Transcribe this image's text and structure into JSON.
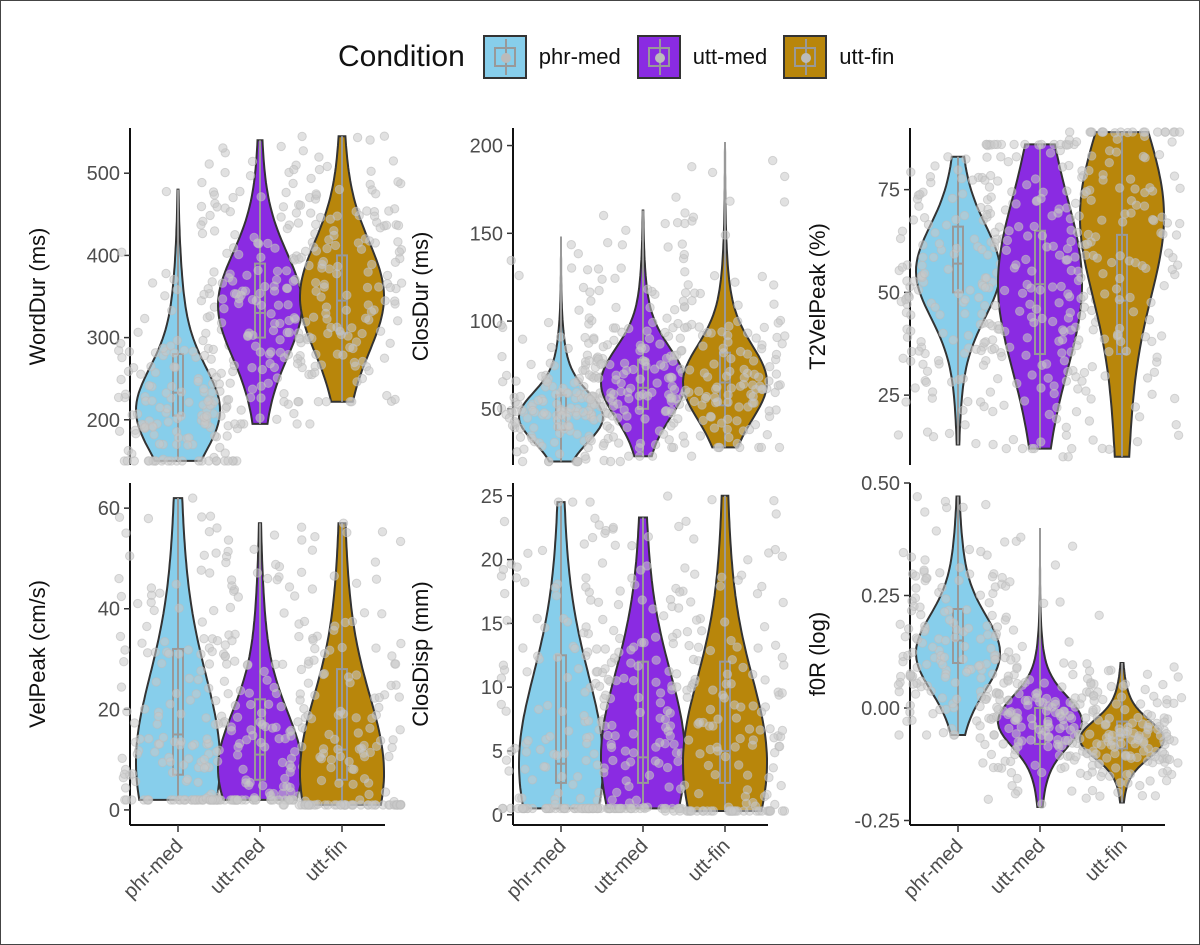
{
  "legend": {
    "title": "Condition",
    "items": [
      {
        "label": "phr-med",
        "color": "#87CEEB"
      },
      {
        "label": "utt-med",
        "color": "#8A2BE2"
      },
      {
        "label": "utt-fin",
        "color": "#B8860B"
      }
    ]
  },
  "colors": {
    "phr-med": "#87CEEB",
    "utt-med": "#8A2BE2",
    "utt-fin": "#B8860B",
    "points": "#C8C8C8",
    "outline": "#333333"
  },
  "chart_data": [
    {
      "type": "violin",
      "ylabel": "WordDur (ms)",
      "categories": [
        "phr-med",
        "utt-med",
        "utt-fin"
      ],
      "yticks": [
        200,
        300,
        400,
        500
      ],
      "ylim": [
        145,
        555
      ],
      "series": [
        {
          "category": "phr-med",
          "min": 150,
          "max": 480,
          "median": 233,
          "q1": 205,
          "q3": 280,
          "mode": 210
        },
        {
          "category": "utt-med",
          "min": 195,
          "max": 540,
          "median": 330,
          "q1": 300,
          "q3": 390,
          "mode": 340
        },
        {
          "category": "utt-fin",
          "min": 222,
          "max": 545,
          "median": 345,
          "q1": 305,
          "q3": 400,
          "mode": 350
        }
      ]
    },
    {
      "type": "violin",
      "ylabel": "ClosDur (ms)",
      "categories": [
        "phr-med",
        "utt-med",
        "utt-fin"
      ],
      "yticks": [
        50,
        100,
        150,
        200
      ],
      "ylim": [
        18,
        210
      ],
      "series": [
        {
          "category": "phr-med",
          "min": 20,
          "max": 148,
          "median": 48,
          "q1": 38,
          "q3": 58,
          "mode": 45
        },
        {
          "category": "utt-med",
          "min": 23,
          "max": 163,
          "median": 62,
          "q1": 50,
          "q3": 78,
          "mode": 65
        },
        {
          "category": "utt-fin",
          "min": 28,
          "max": 202,
          "median": 65,
          "q1": 52,
          "q3": 82,
          "mode": 65
        }
      ]
    },
    {
      "type": "violin",
      "ylabel": "T2VelPeak (%)",
      "categories": [
        "phr-med",
        "utt-med",
        "utt-fin"
      ],
      "yticks": [
        25,
        50,
        75
      ],
      "ylim": [
        8,
        90
      ],
      "series": [
        {
          "category": "phr-med",
          "min": 13,
          "max": 83,
          "median": 57,
          "q1": 50,
          "q3": 66,
          "mode": 55
        },
        {
          "category": "utt-med",
          "min": 12,
          "max": 86,
          "median": 52,
          "q1": 35,
          "q3": 65,
          "mode": 52
        },
        {
          "category": "utt-fin",
          "min": 10,
          "max": 89,
          "median": 48,
          "q1": 35,
          "q3": 64,
          "mode": 70
        }
      ]
    },
    {
      "type": "violin",
      "ylabel": "VelPeak (cm/s)",
      "categories": [
        "phr-med",
        "utt-med",
        "utt-fin"
      ],
      "yticks": [
        0,
        20,
        40,
        60
      ],
      "ylim": [
        -3,
        65
      ],
      "series": [
        {
          "category": "phr-med",
          "min": 2,
          "max": 62,
          "median": 15,
          "q1": 7,
          "q3": 32,
          "mode": 9
        },
        {
          "category": "utt-med",
          "min": 2,
          "max": 57,
          "median": 11,
          "q1": 6,
          "q3": 22,
          "mode": 8
        },
        {
          "category": "utt-fin",
          "min": 1,
          "max": 57,
          "median": 12,
          "q1": 6,
          "q3": 28,
          "mode": 7
        }
      ]
    },
    {
      "type": "violin",
      "ylabel": "ClosDisp (mm)",
      "categories": [
        "phr-med",
        "utt-med",
        "utt-fin"
      ],
      "yticks": [
        0,
        5,
        10,
        15,
        20,
        25
      ],
      "ylim": [
        -0.8,
        26
      ],
      "series": [
        {
          "category": "phr-med",
          "min": 0.5,
          "max": 24.5,
          "median": 4,
          "q1": 2.5,
          "q3": 12.5,
          "mode": 4
        },
        {
          "category": "utt-med",
          "min": 0.5,
          "max": 23.3,
          "median": 4.5,
          "q1": 2.5,
          "q3": 12,
          "mode": 4.5
        },
        {
          "category": "utt-fin",
          "min": 0.3,
          "max": 25,
          "median": 5,
          "q1": 2.5,
          "q3": 12,
          "mode": 4
        }
      ]
    },
    {
      "type": "violin",
      "ylabel": "f0R (log)",
      "categories": [
        "phr-med",
        "utt-med",
        "utt-fin"
      ],
      "yticks": [
        -0.25,
        0.0,
        0.25,
        0.5
      ],
      "ytick_labels": [
        "-0.25",
        "0.00",
        "0.25",
        "0.50"
      ],
      "ylim": [
        -0.26,
        0.5
      ],
      "series": [
        {
          "category": "phr-med",
          "min": -0.06,
          "max": 0.47,
          "median": 0.15,
          "q1": 0.1,
          "q3": 0.22,
          "mode": 0.12
        },
        {
          "category": "utt-med",
          "min": -0.22,
          "max": 0.4,
          "median": -0.04,
          "q1": -0.08,
          "q3": 0.0,
          "mode": -0.03
        },
        {
          "category": "utt-fin",
          "min": -0.21,
          "max": 0.1,
          "median": -0.06,
          "q1": -0.09,
          "q3": -0.03,
          "mode": -0.07
        }
      ]
    }
  ]
}
